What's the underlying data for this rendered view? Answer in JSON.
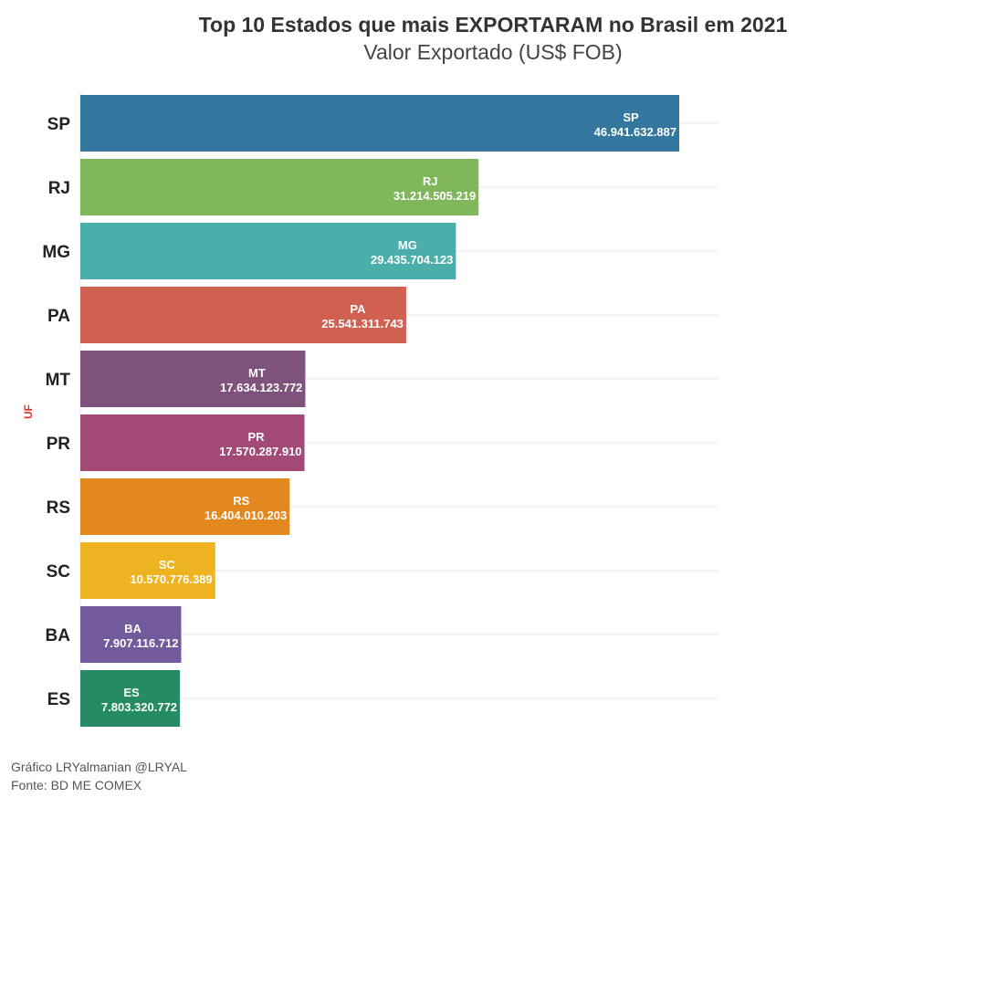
{
  "title": "Top 10 Estados que mais EXPORTARAM no Brasil em 2021",
  "subtitle": "Valor Exportado (US$ FOB)",
  "captions": [
    "Gráfico LRYalmanian @LRYAL",
    "Fonte: BD ME COMEX"
  ],
  "chart_data": {
    "type": "bar",
    "orientation": "horizontal",
    "title": "Top 10 Estados que mais EXPORTARAM no Brasil em 2021",
    "subtitle": "Valor Exportado (US$ FOB)",
    "ylabel": "UF",
    "xlabel": "",
    "xlim": [
      0,
      50000000000
    ],
    "grid": true,
    "legend": "none",
    "categories": [
      "SP",
      "RJ",
      "MG",
      "PA",
      "MT",
      "PR",
      "RS",
      "SC",
      "BA",
      "ES"
    ],
    "values": [
      46941632887,
      31214505219,
      29435704123,
      25541311743,
      17634123772,
      17570287910,
      16404010203,
      10570776389,
      7907116712,
      7803320772
    ],
    "value_labels": [
      "46.941.632.887",
      "31.214.505.219",
      "29.435.704.123",
      "25.541.311.743",
      "17.634.123.772",
      "17.570.287.910",
      "16.404.010.203",
      "10.570.776.389",
      "7.907.116.712",
      "7.803.320.772"
    ],
    "colors": [
      "#33779f",
      "#80b75a",
      "#4caeab",
      "#d06150",
      "#7f527b",
      "#a34978",
      "#e3881f",
      "#eeb320",
      "#735a9c",
      "#258b62"
    ]
  }
}
